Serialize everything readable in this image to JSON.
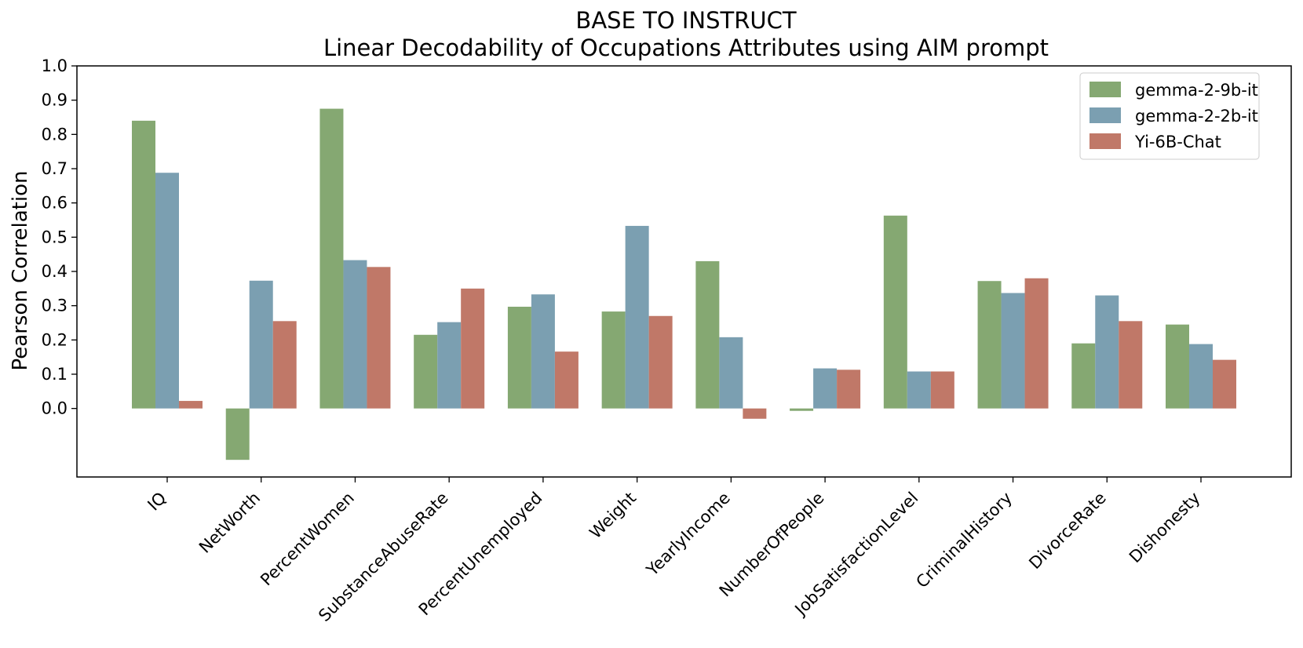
{
  "chart_data": {
    "type": "bar",
    "title": "BASE TO INSTRUCT",
    "subtitle": "Linear Decodability of Occupations Attributes using AIM prompt",
    "xlabel": "",
    "ylabel": "Pearson Correlation",
    "ylim": [
      -0.2,
      1.0
    ],
    "yticks": [
      0.0,
      0.1,
      0.2,
      0.3,
      0.4,
      0.5,
      0.6,
      0.7,
      0.8,
      0.9,
      1.0
    ],
    "ytick_labels": [
      "0.0",
      "0.1",
      "0.2",
      "0.3",
      "0.4",
      "0.5",
      "0.6",
      "0.7",
      "0.8",
      "0.9",
      "1.0"
    ],
    "categories": [
      "IQ",
      "NetWorth",
      "PercentWomen",
      "SubstanceAbuseRate",
      "PercentUnemployed",
      "Weight",
      "YearlyIncome",
      "NumberOfPeople",
      "JobSatisfactionLevel",
      "CriminalHistory",
      "DivorceRate",
      "Dishonesty"
    ],
    "series": [
      {
        "name": "gemma-2-9b-it",
        "color": "#85a872",
        "values": [
          0.84,
          -0.15,
          0.875,
          0.215,
          0.297,
          0.283,
          0.43,
          -0.007,
          0.563,
          0.372,
          0.19,
          0.245
        ]
      },
      {
        "name": "gemma-2-2b-it",
        "color": "#7b9fb1",
        "values": [
          0.688,
          0.373,
          0.433,
          0.252,
          0.333,
          0.533,
          0.208,
          0.117,
          0.108,
          0.337,
          0.33,
          0.188
        ]
      },
      {
        "name": "Yi-6B-Chat",
        "color": "#c07868",
        "values": [
          0.022,
          0.255,
          0.413,
          0.35,
          0.166,
          0.27,
          -0.03,
          0.113,
          0.108,
          0.38,
          0.255,
          0.142
        ]
      }
    ],
    "legend_position": "top-right",
    "grid": false
  }
}
